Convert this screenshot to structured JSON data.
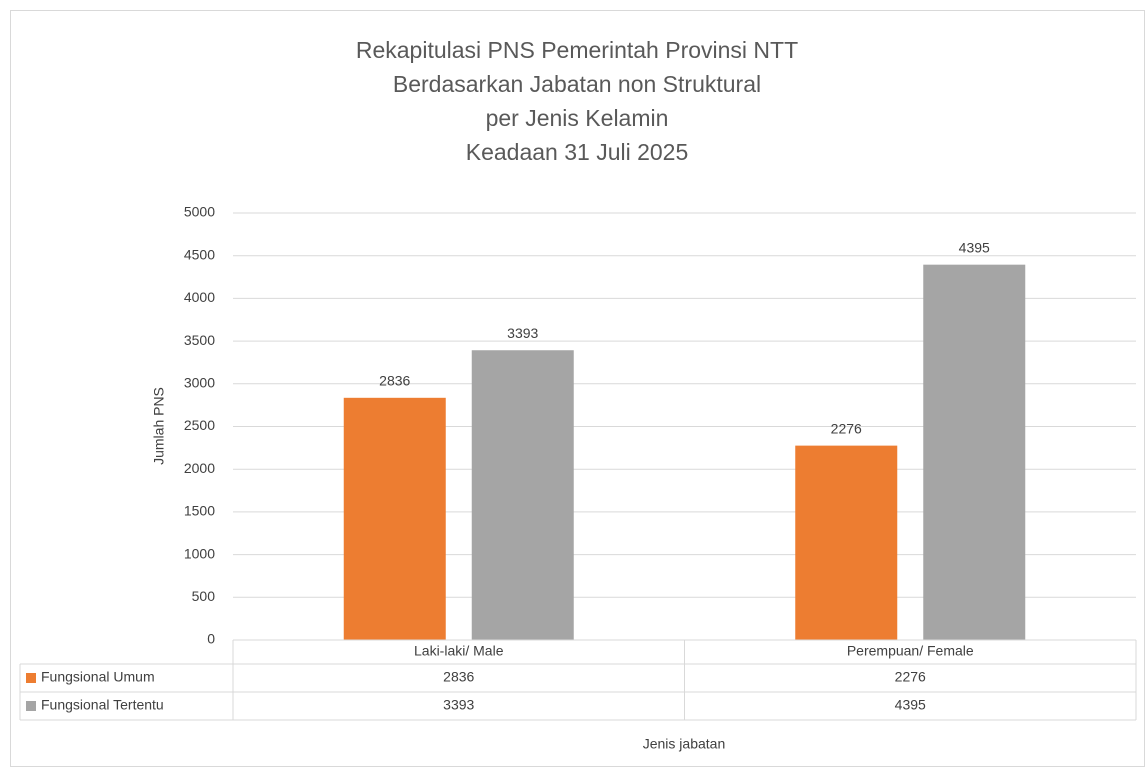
{
  "chart_data": {
    "type": "bar",
    "title": [
      "Rekapitulasi PNS Pemerintah Provinsi NTT",
      "Berdasarkan Jabatan non Struktural",
      "per Jenis Kelamin",
      "Keadaan 31 Juli 2025"
    ],
    "categories": [
      "Laki-laki/ Male",
      "Perempuan/ Female"
    ],
    "series": [
      {
        "name": "Fungsional Umum",
        "color": "#ed7d31",
        "values": [
          2836,
          2276
        ]
      },
      {
        "name": "Fungsional Tertentu",
        "color": "#a5a5a5",
        "values": [
          3393,
          4395
        ]
      }
    ],
    "ylim": [
      0,
      5000
    ],
    "yticks": [
      0,
      500,
      1000,
      1500,
      2000,
      2500,
      3000,
      3500,
      4000,
      4500,
      5000
    ],
    "y_label": "Jumlah PNS",
    "x_label": "Jenis jabatan",
    "grid": true,
    "data_table": true
  }
}
